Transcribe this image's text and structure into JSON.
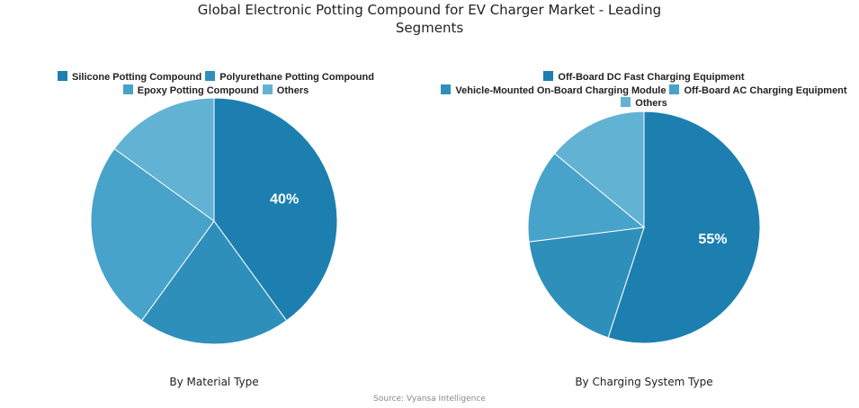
{
  "title_line1": "Global Electronic Potting Compound for EV Charger Market - Leading",
  "title_line2": "Segments",
  "source": "Source: Vyansa Intelligence",
  "colors": [
    "#1c7fb0",
    "#2f8fbb",
    "#47a3c9",
    "#62b2d3"
  ],
  "chart_data": [
    {
      "type": "pie",
      "caption": "By Material Type",
      "categories": [
        "Silicone Potting Compound",
        "Polyurethane Potting Compound",
        "Epoxy Potting Compound",
        "Others"
      ],
      "values": [
        40,
        20,
        25,
        15
      ],
      "data_labels": [
        "40%",
        "",
        "",
        ""
      ],
      "legend_rows": [
        [
          0,
          1
        ],
        [
          2,
          3
        ]
      ]
    },
    {
      "type": "pie",
      "caption": "By Charging System Type",
      "categories": [
        "Off-Board DC Fast Charging Equipment",
        "Vehicle-Mounted On-Board Charging Module",
        "Off-Board AC Charging Equipment",
        "Others"
      ],
      "values": [
        55,
        18,
        13,
        14
      ],
      "data_labels": [
        "55%",
        "",
        "",
        ""
      ],
      "legend_rows": [
        [
          0
        ],
        [
          1,
          2
        ],
        [
          3
        ]
      ]
    }
  ]
}
